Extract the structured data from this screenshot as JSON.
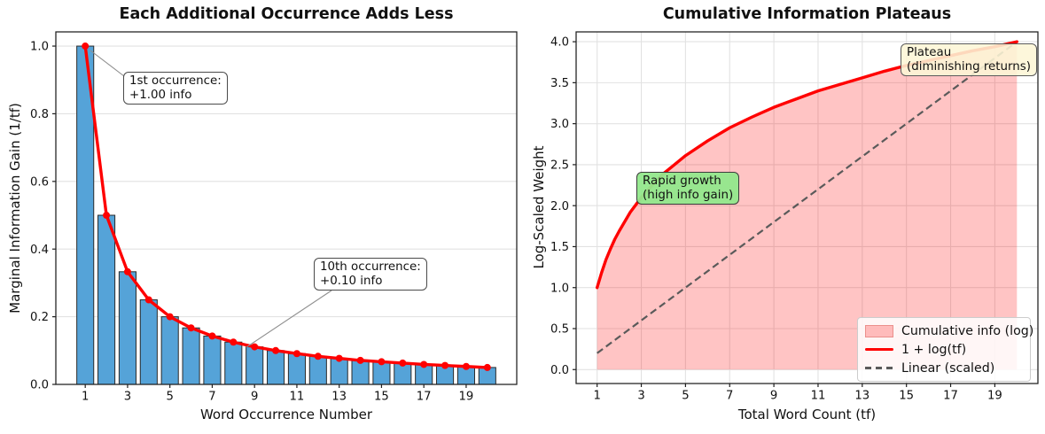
{
  "chart_data": [
    {
      "type": "bar",
      "title": "Each Additional Occurrence Adds Less",
      "xlabel": "Word Occurrence Number",
      "ylabel": "Marginal Information Gain (1/tf)",
      "x": [
        1,
        2,
        3,
        4,
        5,
        6,
        7,
        8,
        9,
        10,
        11,
        12,
        13,
        14,
        15,
        16,
        17,
        18,
        19,
        20
      ],
      "series": [
        {
          "name": "marginal-gain-bars",
          "type": "bar",
          "color": "#55a3d8",
          "edge_color": "#2b2b2b",
          "values": [
            1.0,
            0.5,
            0.333,
            0.25,
            0.2,
            0.167,
            0.143,
            0.125,
            0.111,
            0.1,
            0.091,
            0.083,
            0.077,
            0.071,
            0.067,
            0.063,
            0.059,
            0.056,
            0.053,
            0.05
          ]
        },
        {
          "name": "marginal-gain-line",
          "type": "line",
          "color": "#ff0000",
          "marker": "o",
          "values": [
            1.0,
            0.5,
            0.333,
            0.25,
            0.2,
            0.167,
            0.143,
            0.125,
            0.111,
            0.1,
            0.091,
            0.083,
            0.077,
            0.071,
            0.067,
            0.063,
            0.059,
            0.056,
            0.053,
            0.05
          ]
        }
      ],
      "xlim": [
        -0.39,
        21.39
      ],
      "ylim": [
        0,
        1.042
      ],
      "xticks": [
        1,
        3,
        5,
        7,
        9,
        11,
        13,
        15,
        17,
        19
      ],
      "xtick_labels": [
        "1",
        "3",
        "5",
        "7",
        "9",
        "11",
        "13",
        "15",
        "17",
        "19"
      ],
      "yticks": [
        0,
        0.2,
        0.4,
        0.6,
        0.8,
        1.0
      ],
      "ytick_labels": [
        "0.0",
        "0.2",
        "0.4",
        "0.6",
        "0.8",
        "1.0"
      ],
      "grid": "y",
      "annotations": [
        {
          "id": "first-occurrence",
          "lines": [
            "1st occurrence:",
            "+1.00 info"
          ],
          "target_xy": [
            1,
            1.0
          ],
          "box": "white"
        },
        {
          "id": "tenth-occurrence",
          "lines": [
            "10th occurrence:",
            "+0.10 info"
          ],
          "target_xy": [
            10,
            0.1
          ],
          "box": "white"
        }
      ]
    },
    {
      "type": "area",
      "title": "Cumulative Information Plateaus",
      "xlabel": "Total Word Count (tf)",
      "ylabel": "Log-Scaled Weight",
      "x": [
        1,
        2,
        3,
        4,
        5,
        6,
        7,
        8,
        9,
        10,
        11,
        12,
        13,
        14,
        15,
        16,
        17,
        18,
        19,
        20
      ],
      "series": [
        {
          "name": "cumulative-info-area",
          "type": "area",
          "color": "#ff0000",
          "fill_opacity": 0.23,
          "values": [
            1.0,
            1.69,
            2.1,
            2.39,
            2.61,
            2.79,
            2.95,
            3.08,
            3.2,
            3.3,
            3.4,
            3.48,
            3.56,
            3.64,
            3.71,
            3.77,
            3.83,
            3.89,
            3.94,
            4.0
          ]
        },
        {
          "name": "log-curve",
          "type": "line",
          "color": "#ff0000",
          "linewidth": 3.4,
          "values": [
            1.0,
            1.69,
            2.1,
            2.39,
            2.61,
            2.79,
            2.95,
            3.08,
            3.2,
            3.3,
            3.4,
            3.48,
            3.56,
            3.64,
            3.71,
            3.77,
            3.83,
            3.89,
            3.94,
            4.0
          ]
        },
        {
          "name": "linear-scaled",
          "type": "dashed-line",
          "color": "#5a5a5a",
          "values": [
            0.2,
            0.4,
            0.6,
            0.8,
            1.0,
            1.2,
            1.4,
            1.6,
            1.8,
            2.0,
            2.2,
            2.4,
            2.6,
            2.8,
            3.0,
            3.2,
            3.4,
            3.6,
            3.8,
            4.0
          ]
        }
      ],
      "curve_samples": [
        [
          1,
          1.0
        ],
        [
          1.2,
          1.18
        ],
        [
          1.4,
          1.34
        ],
        [
          1.6,
          1.47
        ],
        [
          1.8,
          1.59
        ],
        [
          2,
          1.69
        ],
        [
          2.5,
          1.92
        ],
        [
          3,
          2.1
        ],
        [
          3.5,
          2.25
        ],
        [
          4,
          2.39
        ],
        [
          4.5,
          2.5
        ],
        [
          5,
          2.61
        ],
        [
          6,
          2.79
        ],
        [
          7,
          2.95
        ],
        [
          8,
          3.08
        ],
        [
          9,
          3.2
        ],
        [
          10,
          3.3
        ],
        [
          11,
          3.4
        ],
        [
          12,
          3.48
        ],
        [
          13,
          3.56
        ],
        [
          14,
          3.64
        ],
        [
          15,
          3.71
        ],
        [
          16,
          3.77
        ],
        [
          17,
          3.83
        ],
        [
          18,
          3.89
        ],
        [
          19,
          3.94
        ],
        [
          20,
          4.0
        ]
      ],
      "xlim": [
        0.05,
        20.95
      ],
      "ylim": [
        -0.17,
        4.12
      ],
      "xticks": [
        1,
        3,
        5,
        7,
        9,
        11,
        13,
        15,
        17,
        19
      ],
      "xtick_labels": [
        "1",
        "3",
        "5",
        "7",
        "9",
        "11",
        "13",
        "15",
        "17",
        "19"
      ],
      "yticks": [
        0,
        0.5,
        1.0,
        1.5,
        2.0,
        2.5,
        3.0,
        3.5,
        4.0
      ],
      "ytick_labels": [
        "0.0",
        "0.5",
        "1.0",
        "1.5",
        "2.0",
        "2.5",
        "3.0",
        "3.5",
        "4.0"
      ],
      "grid": "xy",
      "legend": {
        "location": "lower right",
        "entries": [
          {
            "label": "Cumulative info (log)",
            "swatch": "patch"
          },
          {
            "label": "1 + log(tf)",
            "swatch": "line"
          },
          {
            "label": "Linear (scaled)",
            "swatch": "dash"
          }
        ]
      },
      "annotations": [
        {
          "id": "rapid-growth",
          "lines": [
            "Rapid growth",
            "(high info gain)"
          ],
          "box": "green"
        },
        {
          "id": "plateau",
          "lines": [
            "Plateau",
            "(diminishing returns)"
          ],
          "box": "yellow"
        }
      ]
    }
  ],
  "colors": {
    "bar_fill": "#55a3d8",
    "line_red": "#ff0000",
    "area_pink": "rgba(255,0,0,0.23)",
    "dashed_gray": "#5a5a5a",
    "grid": "#e2e2e2",
    "spine": "#1f1f1f",
    "annotation_green": "#92e88c",
    "annotation_yellow": "#fdf6d6"
  }
}
